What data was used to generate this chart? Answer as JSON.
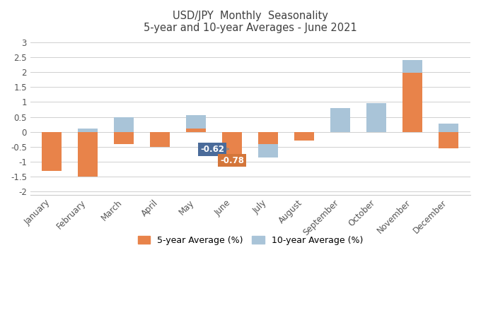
{
  "title_line1": "USD/JPY  Monthly  Seasonality",
  "title_line2": "5-year and 10-year Averages - June 2021",
  "months": [
    "January",
    "February",
    "March",
    "April",
    "May",
    "June",
    "July",
    "August",
    "September",
    "October",
    "November",
    "December"
  ],
  "five_year": [
    -1.3,
    -1.5,
    -0.4,
    -0.5,
    0.1,
    -0.78,
    -0.4,
    -0.3,
    0.0,
    0.0,
    1.97,
    -0.55
  ],
  "ten_year": [
    -0.05,
    0.1,
    0.48,
    -0.5,
    0.55,
    -0.62,
    -0.85,
    -0.15,
    0.8,
    0.97,
    2.4,
    0.28
  ],
  "five_year_color": "#E8834A",
  "ten_year_color": "#A9C4D8",
  "annotation_june_10yr_color": "#4A6B9A",
  "annotation_june_5yr_color": "#D4763A",
  "annotation_text_color": "#FFFFFF",
  "bar_width": 0.55,
  "ylim": [
    -2.1,
    3.1
  ],
  "yticks": [
    -2.0,
    -1.5,
    -1.0,
    -0.5,
    0.0,
    0.5,
    1.0,
    1.5,
    2.0,
    2.5,
    3.0
  ],
  "background_color": "#FFFFFF",
  "grid_color": "#D0D0D0",
  "title_color": "#404040",
  "legend_label_5yr": "5-year Average (%)",
  "legend_label_10yr": "10-year Average (%)",
  "font_size_title": 10.5,
  "font_size_ticks": 8.5,
  "font_size_legend": 9,
  "font_size_annotation": 8.5,
  "spine_color": "#CCCCCC",
  "tick_color": "#555555"
}
